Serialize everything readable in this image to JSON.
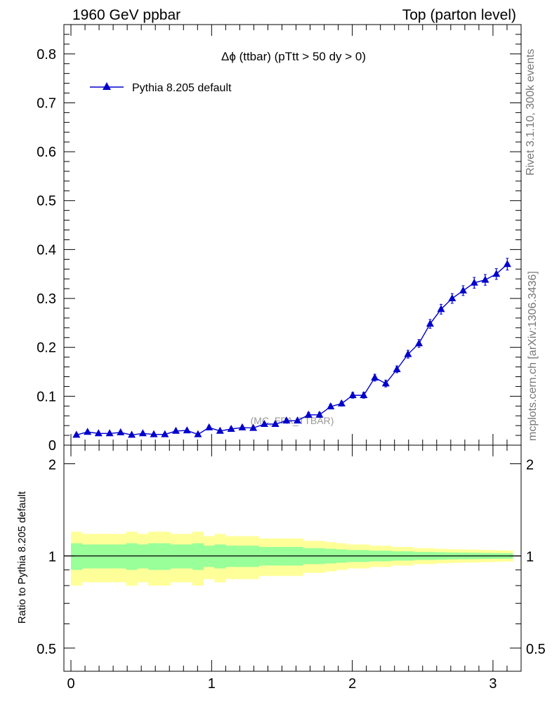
{
  "header": {
    "left": "1960 GeV ppbar",
    "right": "Top (parton level)"
  },
  "side_labels": {
    "rivet": "Rivet 3.1.10,  300k events",
    "mcplots": "mcplots.cern.ch [arXiv:1306.3436]"
  },
  "colors": {
    "series": "#0000cc",
    "band_inner": "#99ff99",
    "band_outer": "#ffff99",
    "watermark": "#999999"
  },
  "chart_data": [
    {
      "type": "line",
      "title": "Δϕ (ttbar) (pTtt > 50 dy > 0)",
      "watermark": "(MC_FPA_TTBAR)",
      "xlim": [
        -0.05,
        3.2
      ],
      "ylim": [
        0,
        0.86
      ],
      "yticks": [
        0,
        0.1,
        0.2,
        0.3,
        0.4,
        0.5,
        0.6,
        0.7,
        0.8
      ],
      "ytick_labels": [
        "0",
        "0.1",
        "0.2",
        "0.3",
        "0.4",
        "0.5",
        "0.6",
        "0.7",
        "0.8"
      ],
      "series": [
        {
          "name": "Pythia 8.205 default",
          "marker": "triangle-up",
          "x": [
            0.039,
            0.118,
            0.196,
            0.275,
            0.353,
            0.432,
            0.511,
            0.589,
            0.668,
            0.746,
            0.825,
            0.903,
            0.982,
            1.06,
            1.139,
            1.218,
            1.296,
            1.375,
            1.453,
            1.532,
            1.61,
            1.689,
            1.767,
            1.846,
            1.924,
            2.003,
            2.081,
            2.16,
            2.238,
            2.317,
            2.396,
            2.474,
            2.553,
            2.631,
            2.71,
            2.788,
            2.867,
            2.945,
            3.024,
            3.102
          ],
          "y": [
            0.021,
            0.027,
            0.024,
            0.024,
            0.026,
            0.021,
            0.024,
            0.022,
            0.022,
            0.029,
            0.03,
            0.022,
            0.036,
            0.029,
            0.033,
            0.036,
            0.035,
            0.043,
            0.043,
            0.05,
            0.05,
            0.062,
            0.062,
            0.079,
            0.085,
            0.102,
            0.102,
            0.138,
            0.126,
            0.155,
            0.186,
            0.208,
            0.248,
            0.278,
            0.3,
            0.316,
            0.332,
            0.338,
            0.35,
            0.37
          ],
          "yerr": [
            0.003,
            0.003,
            0.003,
            0.003,
            0.003,
            0.003,
            0.003,
            0.003,
            0.003,
            0.003,
            0.003,
            0.003,
            0.004,
            0.003,
            0.004,
            0.004,
            0.004,
            0.004,
            0.004,
            0.004,
            0.004,
            0.005,
            0.005,
            0.005,
            0.005,
            0.006,
            0.006,
            0.007,
            0.007,
            0.007,
            0.008,
            0.008,
            0.009,
            0.01,
            0.01,
            0.01,
            0.011,
            0.011,
            0.011,
            0.012
          ]
        }
      ]
    },
    {
      "type": "area",
      "ylabel": "Ratio to Pythia 8.205 default",
      "xlabel": "",
      "xlim": [
        -0.05,
        3.2
      ],
      "ylim": [
        0.42,
        2.3
      ],
      "yscale": "log",
      "xticks": [
        0,
        1,
        2,
        3
      ],
      "xtick_labels": [
        "0",
        "1",
        "2",
        "3"
      ],
      "yticks": [
        0.5,
        1,
        2
      ],
      "ytick_labels": [
        "0.5",
        "1",
        "2"
      ],
      "reference_line": 1,
      "bin_edges": [
        0,
        0.0785,
        0.157,
        0.2355,
        0.314,
        0.3925,
        0.471,
        0.5495,
        0.628,
        0.7065,
        0.785,
        0.8635,
        0.942,
        1.0205,
        1.099,
        1.1775,
        1.256,
        1.3345,
        1.413,
        1.4915,
        1.57,
        1.6485,
        1.727,
        1.8055,
        1.884,
        1.9625,
        2.041,
        2.1195,
        2.198,
        2.2765,
        2.355,
        2.4335,
        2.512,
        2.5905,
        2.669,
        2.7475,
        2.826,
        2.9045,
        2.983,
        3.0615,
        3.14
      ],
      "series": [
        {
          "name": "inner band",
          "lower": [
            0.9,
            0.91,
            0.91,
            0.91,
            0.91,
            0.9,
            0.91,
            0.9,
            0.9,
            0.91,
            0.91,
            0.9,
            0.92,
            0.91,
            0.92,
            0.92,
            0.92,
            0.93,
            0.93,
            0.93,
            0.93,
            0.94,
            0.94,
            0.945,
            0.95,
            0.955,
            0.955,
            0.96,
            0.96,
            0.965,
            0.965,
            0.97,
            0.97,
            0.972,
            0.974,
            0.975,
            0.976,
            0.977,
            0.978,
            0.979
          ],
          "upper": [
            1.1,
            1.09,
            1.09,
            1.09,
            1.09,
            1.1,
            1.09,
            1.1,
            1.1,
            1.09,
            1.09,
            1.1,
            1.08,
            1.09,
            1.08,
            1.08,
            1.08,
            1.07,
            1.07,
            1.07,
            1.07,
            1.06,
            1.06,
            1.055,
            1.05,
            1.045,
            1.045,
            1.04,
            1.04,
            1.035,
            1.035,
            1.03,
            1.03,
            1.028,
            1.026,
            1.025,
            1.024,
            1.023,
            1.022,
            1.021
          ]
        },
        {
          "name": "outer band",
          "lower": [
            0.8,
            0.82,
            0.82,
            0.82,
            0.82,
            0.8,
            0.82,
            0.8,
            0.8,
            0.82,
            0.82,
            0.8,
            0.84,
            0.82,
            0.84,
            0.84,
            0.84,
            0.86,
            0.86,
            0.86,
            0.86,
            0.88,
            0.88,
            0.89,
            0.9,
            0.91,
            0.91,
            0.92,
            0.92,
            0.93,
            0.93,
            0.94,
            0.94,
            0.945,
            0.948,
            0.95,
            0.952,
            0.954,
            0.956,
            0.958
          ],
          "upper": [
            1.2,
            1.18,
            1.18,
            1.18,
            1.18,
            1.2,
            1.18,
            1.2,
            1.2,
            1.18,
            1.18,
            1.2,
            1.16,
            1.18,
            1.16,
            1.16,
            1.16,
            1.14,
            1.14,
            1.14,
            1.14,
            1.12,
            1.12,
            1.11,
            1.1,
            1.09,
            1.09,
            1.08,
            1.08,
            1.07,
            1.07,
            1.06,
            1.06,
            1.055,
            1.052,
            1.05,
            1.048,
            1.046,
            1.044,
            1.042
          ]
        }
      ]
    }
  ]
}
